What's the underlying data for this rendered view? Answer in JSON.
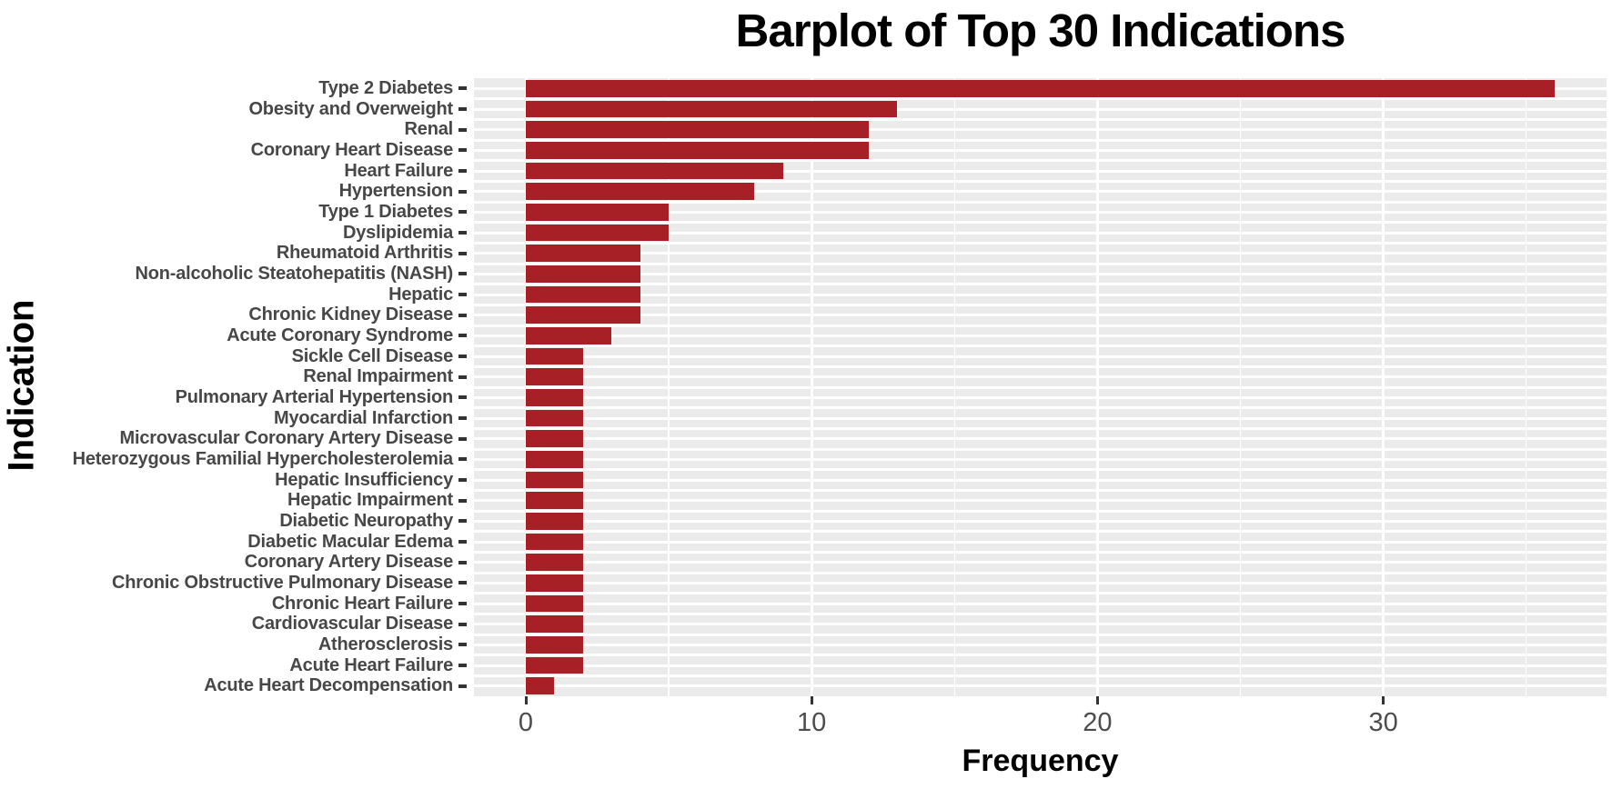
{
  "title": "Barplot of Top 30 Indications",
  "chart_data": {
    "type": "bar",
    "orientation": "horizontal",
    "title": "Barplot of Top 30 Indications",
    "xlabel": "Frequency",
    "ylabel": "Indication",
    "categories": [
      "Type 2 Diabetes",
      "Obesity and Overweight",
      "Renal",
      "Coronary Heart Disease",
      "Heart Failure",
      "Hypertension",
      "Type 1 Diabetes",
      "Dyslipidemia",
      "Rheumatoid Arthritis",
      "Non-alcoholic Steatohepatitis (NASH)",
      "Hepatic",
      "Chronic Kidney Disease",
      "Acute Coronary Syndrome",
      "Sickle Cell Disease",
      "Renal Impairment",
      "Pulmonary Arterial Hypertension",
      "Myocardial Infarction",
      "Microvascular Coronary Artery Disease",
      "Heterozygous Familial Hypercholesterolemia",
      "Hepatic Insufficiency",
      "Hepatic Impairment",
      "Diabetic Neuropathy",
      "Diabetic Macular Edema",
      "Coronary Artery Disease",
      "Chronic Obstructive Pulmonary Disease",
      "Chronic Heart Failure",
      "Cardiovascular Disease",
      "Atherosclerosis",
      "Acute Heart Failure",
      "Acute Heart Decompensation"
    ],
    "values": [
      36,
      13,
      12,
      12,
      9,
      8,
      5,
      5,
      4,
      4,
      4,
      4,
      3,
      2,
      2,
      2,
      2,
      2,
      2,
      2,
      2,
      2,
      2,
      2,
      2,
      2,
      2,
      2,
      2,
      1
    ],
    "x_ticks": [
      0,
      10,
      20,
      30
    ],
    "x_minor_ticks": [
      5,
      15,
      25,
      35
    ],
    "xlim": [
      -1.8,
      37.8
    ],
    "legend": "none",
    "grid": "white major and minor gridlines on grey panel",
    "colors": {
      "bar": "#A72025",
      "panel_bg": "#EBEBEB",
      "grid": "#FFFFFF",
      "axis_text": "#4D4D4D",
      "category_text": "#474747",
      "tick_mark": "#333333",
      "title_text": "#000000"
    }
  }
}
